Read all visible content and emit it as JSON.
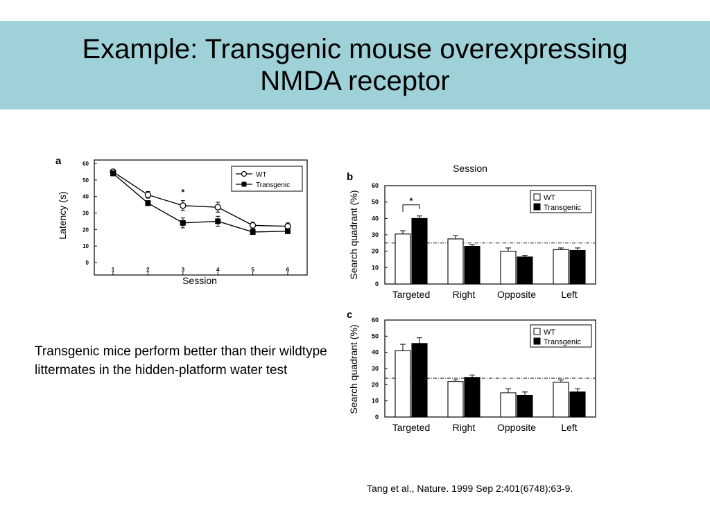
{
  "slide": {
    "title_line1": "Example: Transgenic mouse overexpressing",
    "title_line2": "NMDA receptor",
    "caption": "Transgenic mice perform better than their wildtype littermates in the hidden-platform water test",
    "citation": "Tang et al., Nature. 1999 Sep 2;401(6748):63-9.",
    "citation_link": " "
  },
  "chart_data": [
    {
      "panel": "a",
      "type": "line",
      "xlabel": "Session",
      "ylabel": "Latency (s)",
      "x": [
        1,
        2,
        3,
        4,
        5,
        6
      ],
      "ylim": [
        0,
        60
      ],
      "yticks": [
        0,
        10,
        20,
        30,
        40,
        50,
        60
      ],
      "series": [
        {
          "name": "WT",
          "values": [
            55,
            41,
            34.5,
            33.5,
            22.5,
            22
          ],
          "errors": [
            1.5,
            2,
            3,
            3,
            2,
            2
          ],
          "marker": "open-circle"
        },
        {
          "name": "Transgenic",
          "values": [
            54,
            36,
            24,
            25,
            18.5,
            19
          ],
          "errors": [
            1.5,
            1.5,
            3,
            3,
            1.5,
            1.5
          ],
          "marker": "filled-square"
        }
      ],
      "annotations": [
        {
          "x": 3,
          "text": "*"
        }
      ],
      "legend": "top-right",
      "grid": false
    },
    {
      "panel": "b",
      "type": "bar",
      "top_label": "Session",
      "ylabel": "Search quadrant (%)",
      "categories": [
        "Targeted",
        "Right",
        "Opposite",
        "Left"
      ],
      "ylim": [
        0,
        60
      ],
      "yticks": [
        0,
        10,
        20,
        30,
        40,
        50,
        60
      ],
      "series": [
        {
          "name": "WT",
          "values": [
            30.5,
            27.5,
            20,
            21
          ],
          "errors": [
            2,
            2,
            2,
            1
          ],
          "color": "#ffffff"
        },
        {
          "name": "Transgenic",
          "values": [
            40,
            23,
            16.5,
            20.5
          ],
          "errors": [
            1.5,
            1,
            1,
            1.5
          ],
          "color": "#000000"
        }
      ],
      "reference_line": 25,
      "annotations": [
        {
          "category": "Targeted",
          "text": "*"
        }
      ],
      "legend": "top-right",
      "grid": false
    },
    {
      "panel": "c",
      "type": "bar",
      "ylabel": "Search quadrant (%)",
      "categories": [
        "Targeted",
        "Right",
        "Opposite",
        "Left"
      ],
      "ylim": [
        0,
        60
      ],
      "yticks": [
        0,
        10,
        20,
        30,
        40,
        50,
        60
      ],
      "series": [
        {
          "name": "WT",
          "values": [
            41,
            22,
            15,
            21.5
          ],
          "errors": [
            4,
            1,
            2.5,
            1.5
          ],
          "color": "#ffffff"
        },
        {
          "name": "Transgenic",
          "values": [
            45.5,
            24.5,
            13.5,
            15.5
          ],
          "errors": [
            3.5,
            1.5,
            2,
            2
          ],
          "color": "#000000"
        }
      ],
      "reference_line": 24,
      "legend": "top-right",
      "grid": false
    }
  ]
}
